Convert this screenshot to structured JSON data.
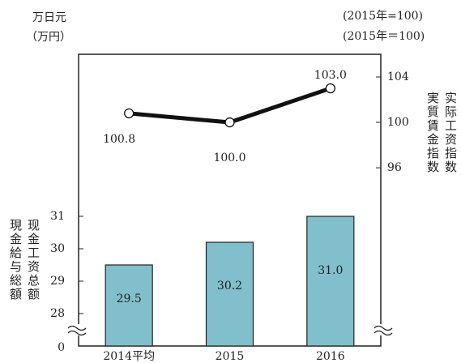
{
  "chart_data": {
    "type": "bar_line",
    "categories": [
      "2014平均",
      "2015",
      "2016"
    ],
    "series": [
      {
        "type": "bar",
        "color": "#80bfcb",
        "values": [
          29.5,
          30.2,
          31.0
        ],
        "value_labels": [
          "29.5",
          "30.2",
          "31.0"
        ]
      },
      {
        "type": "line",
        "axis": "y2",
        "color": "#111111",
        "values": [
          100.8,
          100.0,
          103.0
        ],
        "value_labels": [
          "100.8",
          "100.0",
          "103.0"
        ]
      }
    ],
    "ylim": [
      27,
      36
    ],
    "yticks": [
      28,
      29,
      30,
      31
    ],
    "y_break_tick": 0,
    "y2lim": [
      80.3,
      106
    ],
    "y2ticks": [
      96,
      100,
      104
    ],
    "y_unit": "万日元",
    "y_unit_ja": "（万円）",
    "y_label": "现金工资总额",
    "y_label_ja": "現金給与総額",
    "y2_unit": "(2015年=100)",
    "y2_unit_ja": "(2015年＝100)",
    "y2_label": "实际工资指数",
    "y2_label_ja": "実質賃金指数"
  }
}
